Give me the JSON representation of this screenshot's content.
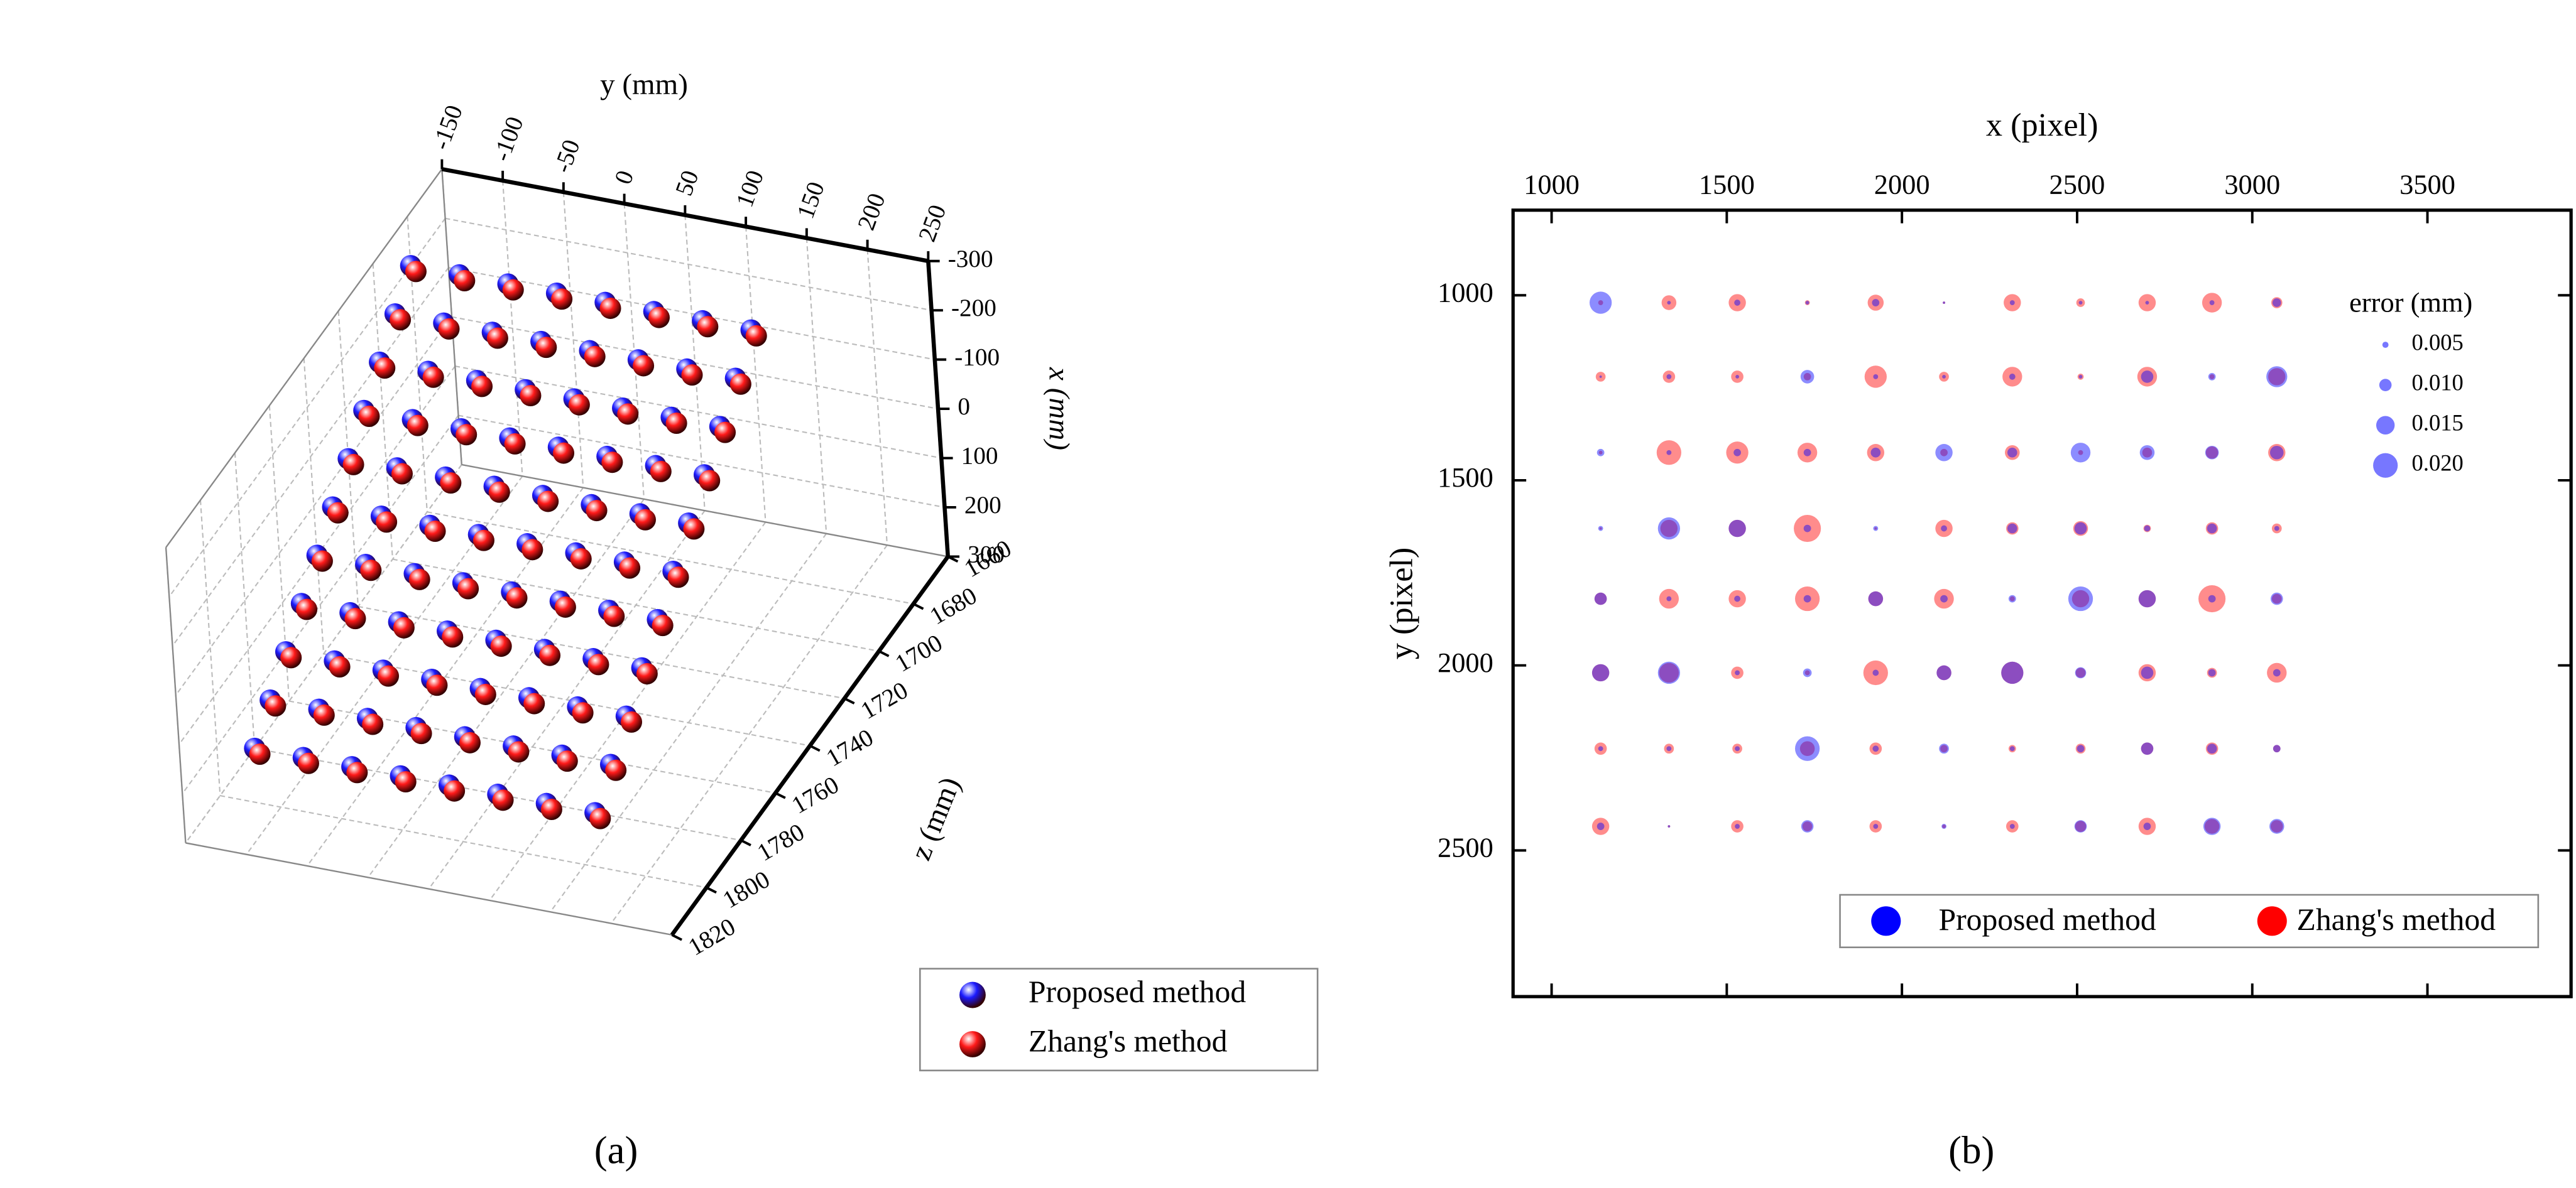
{
  "chart_data": [
    {
      "type": "scatter3d",
      "panel_label": "(a)",
      "xlabel": "x (mm)",
      "ylabel": "y (mm)",
      "zlabel": "z (mm)",
      "xlim": [
        -300,
        300
      ],
      "ylim": [
        -150,
        250
      ],
      "zlim": [
        1660,
        1820
      ],
      "xticks": [
        -300,
        -200,
        -100,
        0,
        100,
        200,
        300
      ],
      "yticks": [
        -150,
        -100,
        -50,
        0,
        50,
        100,
        150,
        200,
        250
      ],
      "zticks": [
        1660,
        1680,
        1700,
        1720,
        1740,
        1760,
        1780,
        1800,
        1820
      ],
      "grid": true,
      "legend": "lower right",
      "series": [
        {
          "name": "Proposed method",
          "color": "#1a1aff",
          "x": [
            -200,
            -200,
            -200,
            -200,
            -200,
            -200,
            -200,
            -200,
            -150,
            -150,
            -150,
            -150,
            -150,
            -150,
            -150,
            -150,
            -100,
            -100,
            -100,
            -100,
            -100,
            -100,
            -100,
            -100,
            -50,
            -50,
            -50,
            -50,
            -50,
            -50,
            -50,
            -50,
            0,
            0,
            0,
            0,
            0,
            0,
            0,
            0,
            50,
            50,
            50,
            50,
            50,
            50,
            50,
            50,
            100,
            100,
            100,
            100,
            100,
            100,
            100,
            100,
            150,
            150,
            150,
            150,
            150,
            150,
            150,
            150,
            200,
            200,
            200,
            200,
            200,
            200,
            200,
            200,
            250,
            250,
            250,
            250,
            250,
            250,
            250,
            250,
            300,
            300,
            300,
            300,
            300,
            300,
            300,
            300
          ],
          "y": [
            -150,
            -110,
            -70,
            -30,
            10,
            50,
            90,
            130,
            -150,
            -110,
            -70,
            -30,
            10,
            50,
            90,
            130,
            -150,
            -110,
            -70,
            -30,
            10,
            50,
            90,
            130,
            -150,
            -110,
            -70,
            -30,
            10,
            50,
            90,
            130,
            -150,
            -110,
            -70,
            -30,
            10,
            50,
            90,
            130,
            -150,
            -110,
            -70,
            -30,
            10,
            50,
            90,
            130,
            -150,
            -110,
            -70,
            -30,
            10,
            50,
            90,
            130,
            -150,
            -110,
            -70,
            -30,
            10,
            50,
            90,
            130,
            -150,
            -110,
            -70,
            -30,
            10,
            50,
            90,
            130,
            -150,
            -110,
            -70,
            -30,
            10,
            50,
            90,
            130,
            -150,
            -110,
            -70,
            -30,
            10,
            50,
            90,
            130
          ],
          "z": [
            1680,
            1680,
            1680,
            1680,
            1680,
            1680,
            1680,
            1680,
            1690,
            1690,
            1690,
            1690,
            1690,
            1690,
            1690,
            1690,
            1700,
            1700,
            1700,
            1700,
            1700,
            1700,
            1700,
            1700,
            1710,
            1710,
            1710,
            1710,
            1710,
            1710,
            1710,
            1710,
            1720,
            1720,
            1720,
            1720,
            1720,
            1720,
            1720,
            1720,
            1730,
            1730,
            1730,
            1730,
            1730,
            1730,
            1730,
            1730,
            1740,
            1740,
            1740,
            1740,
            1740,
            1740,
            1740,
            1740,
            1750,
            1750,
            1750,
            1750,
            1750,
            1750,
            1750,
            1750,
            1760,
            1760,
            1760,
            1760,
            1760,
            1760,
            1760,
            1760,
            1770,
            1770,
            1770,
            1770,
            1770,
            1770,
            1770,
            1770,
            1780,
            1780,
            1780,
            1780,
            1780,
            1780,
            1780,
            1780
          ]
        },
        {
          "name": "Zhang's method",
          "color": "#ff1a1a",
          "x": [
            -190,
            -190,
            -190,
            -190,
            -190,
            -190,
            -190,
            -190,
            -140,
            -140,
            -140,
            -140,
            -140,
            -140,
            -140,
            -140,
            -90,
            -90,
            -90,
            -90,
            -90,
            -90,
            -90,
            -90,
            -40,
            -40,
            -40,
            -40,
            -40,
            -40,
            -40,
            -40,
            10,
            10,
            10,
            10,
            10,
            10,
            10,
            10,
            60,
            60,
            60,
            60,
            60,
            60,
            60,
            60,
            110,
            110,
            110,
            110,
            110,
            110,
            110,
            110,
            160,
            160,
            160,
            160,
            160,
            160,
            160,
            160,
            210,
            210,
            210,
            210,
            210,
            210,
            210,
            210,
            260,
            260,
            260,
            260,
            260,
            260,
            260,
            260,
            310,
            310,
            310,
            310,
            310,
            310,
            310,
            310
          ],
          "y": [
            -146,
            -106,
            -66,
            -26,
            14,
            54,
            94,
            134,
            -146,
            -106,
            -66,
            -26,
            14,
            54,
            94,
            134,
            -146,
            -106,
            -66,
            -26,
            14,
            54,
            94,
            134,
            -146,
            -106,
            -66,
            -26,
            14,
            54,
            94,
            134,
            -146,
            -106,
            -66,
            -26,
            14,
            54,
            94,
            134,
            -146,
            -106,
            -66,
            -26,
            14,
            54,
            94,
            134,
            -146,
            -106,
            -66,
            -26,
            14,
            54,
            94,
            134,
            -146,
            -106,
            -66,
            -26,
            14,
            54,
            94,
            134,
            -146,
            -106,
            -66,
            -26,
            14,
            54,
            94,
            134,
            -146,
            -106,
            -66,
            -26,
            14,
            54,
            94,
            134,
            -146,
            -106,
            -66,
            -26,
            14,
            54,
            94,
            134
          ],
          "z": [
            1680,
            1680,
            1680,
            1680,
            1680,
            1680,
            1680,
            1680,
            1690,
            1690,
            1690,
            1690,
            1690,
            1690,
            1690,
            1690,
            1700,
            1700,
            1700,
            1700,
            1700,
            1700,
            1700,
            1700,
            1710,
            1710,
            1710,
            1710,
            1710,
            1710,
            1710,
            1710,
            1720,
            1720,
            1720,
            1720,
            1720,
            1720,
            1720,
            1720,
            1730,
            1730,
            1730,
            1730,
            1730,
            1730,
            1730,
            1730,
            1740,
            1740,
            1740,
            1740,
            1740,
            1740,
            1740,
            1740,
            1750,
            1750,
            1750,
            1750,
            1750,
            1750,
            1750,
            1750,
            1760,
            1760,
            1760,
            1760,
            1760,
            1760,
            1760,
            1760,
            1770,
            1770,
            1770,
            1770,
            1770,
            1770,
            1770,
            1770,
            1780,
            1780,
            1780,
            1780,
            1780,
            1780,
            1780,
            1780
          ]
        }
      ]
    },
    {
      "type": "bubble",
      "panel_label": "(b)",
      "xlabel": "x (pixel)",
      "ylabel": "y (pixel)",
      "xlim": [
        890,
        3910
      ],
      "ylim": [
        2895,
        770
      ],
      "xticks": [
        1000,
        1500,
        2000,
        2500,
        3000,
        3500
      ],
      "yticks": [
        1000,
        1500,
        2000,
        2500
      ],
      "legend": "lower right",
      "size_legend": {
        "title": "error (mm)",
        "values": [
          0.005,
          {
            "value": 0.01,
            "label": "0.010"
          },
          0.015,
          {
            "value": 0.02,
            "label": "0.020"
          }
        ],
        "color": "#5555ff"
      },
      "x": [
        1140,
        1335,
        1530,
        1730,
        1925,
        2120,
        2315,
        2510,
        2700,
        2885,
        3070,
        1140,
        1335,
        1530,
        1730,
        1925,
        2120,
        2315,
        2510,
        2700,
        2885,
        3070,
        1140,
        1335,
        1530,
        1730,
        1925,
        2120,
        2315,
        2510,
        2700,
        2885,
        3070,
        1140,
        1335,
        1530,
        1730,
        1925,
        2120,
        2315,
        2510,
        2700,
        2885,
        3070,
        1140,
        1335,
        1530,
        1730,
        1925,
        2120,
        2315,
        2510,
        2700,
        2885,
        3070,
        1140,
        1335,
        1530,
        1730,
        1925,
        2120,
        2315,
        2510,
        2700,
        2885,
        3070,
        1140,
        1335,
        1530,
        1730,
        1925,
        2120,
        2315,
        2510,
        2700,
        2885,
        3070,
        1140,
        1335,
        1530,
        1730,
        1925,
        2120,
        2315,
        2510,
        2700,
        2885,
        3070
      ],
      "y": [
        1020,
        1020,
        1020,
        1020,
        1020,
        1020,
        1020,
        1020,
        1020,
        1020,
        1020,
        1220,
        1220,
        1220,
        1220,
        1220,
        1220,
        1220,
        1220,
        1220,
        1220,
        1220,
        1425,
        1425,
        1425,
        1425,
        1425,
        1425,
        1425,
        1425,
        1425,
        1425,
        1425,
        1630,
        1630,
        1630,
        1630,
        1630,
        1630,
        1630,
        1630,
        1630,
        1630,
        1630,
        1820,
        1820,
        1820,
        1820,
        1820,
        1820,
        1820,
        1820,
        1820,
        1820,
        1820,
        2020,
        2020,
        2020,
        2020,
        2020,
        2020,
        2020,
        2020,
        2020,
        2020,
        2020,
        2225,
        2225,
        2225,
        2225,
        2225,
        2225,
        2225,
        2225,
        2225,
        2225,
        2225,
        2435,
        2435,
        2435,
        2435,
        2435,
        2435,
        2435,
        2435,
        2435,
        2435,
        2435
      ],
      "series": [
        {
          "name": "Proposed method",
          "color": "#0000ff",
          "values": [
            0.018,
            0.003,
            0.005,
            0.003,
            0.006,
            0.002,
            0.004,
            0.003,
            0.003,
            0.004,
            0.007,
            0.002,
            0.004,
            0.003,
            0.011,
            0.004,
            0.003,
            0.005,
            0.003,
            0.01,
            0.006,
            0.017,
            0.006,
            0.004,
            0.006,
            0.006,
            0.008,
            0.014,
            0.008,
            0.016,
            0.012,
            0.011,
            0.011,
            0.004,
            0.018,
            0.014,
            0.006,
            0.004,
            0.005,
            0.008,
            0.01,
            0.005,
            0.008,
            0.004,
            0.01,
            0.004,
            0.005,
            0.006,
            0.012,
            0.006,
            0.006,
            0.02,
            0.014,
            0.006,
            0.01,
            0.014,
            0.018,
            0.004,
            0.007,
            0.005,
            0.012,
            0.018,
            0.009,
            0.01,
            0.006,
            0.006,
            0.004,
            0.004,
            0.004,
            0.02,
            0.005,
            0.008,
            0.004,
            0.006,
            0.01,
            0.008,
            0.006,
            0.006,
            0.002,
            0.004,
            0.01,
            0.004,
            0.004,
            0.004,
            0.01,
            0.006,
            0.014,
            0.012
          ]
        },
        {
          "name": "Zhang's method",
          "color": "#ff0000",
          "values": [
            0.004,
            0.012,
            0.014,
            0.004,
            0.013,
            0.002,
            0.014,
            0.007,
            0.014,
            0.016,
            0.009,
            0.008,
            0.01,
            0.01,
            0.006,
            0.018,
            0.008,
            0.016,
            0.005,
            0.016,
            0.004,
            0.014,
            0.003,
            0.02,
            0.018,
            0.016,
            0.014,
            0.006,
            0.012,
            0.004,
            0.008,
            0.01,
            0.014,
            0.002,
            0.014,
            0.014,
            0.022,
            0.002,
            0.014,
            0.01,
            0.012,
            0.006,
            0.01,
            0.008,
            0.01,
            0.016,
            0.014,
            0.02,
            0.012,
            0.016,
            0.004,
            0.014,
            0.014,
            0.022,
            0.008,
            0.014,
            0.016,
            0.01,
            0.004,
            0.02,
            0.012,
            0.018,
            0.008,
            0.014,
            0.008,
            0.016,
            0.01,
            0.008,
            0.008,
            0.012,
            0.01,
            0.006,
            0.006,
            0.008,
            0.01,
            0.01,
            0.006,
            0.014,
            0.002,
            0.01,
            0.008,
            0.01,
            0.003,
            0.01,
            0.009,
            0.014,
            0.012,
            0.01
          ]
        }
      ]
    }
  ]
}
